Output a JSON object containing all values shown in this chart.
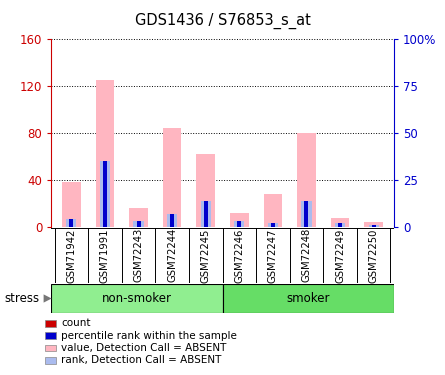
{
  "title": "GDS1436 / S76853_s_at",
  "samples": [
    "GSM71942",
    "GSM71991",
    "GSM72243",
    "GSM72244",
    "GSM72245",
    "GSM72246",
    "GSM72247",
    "GSM72248",
    "GSM72249",
    "GSM72250"
  ],
  "count_values": [
    2,
    2,
    1,
    2,
    2,
    2,
    1,
    2,
    1,
    1
  ],
  "percentile_rank": [
    4,
    35,
    3,
    7,
    14,
    3,
    2,
    14,
    2,
    1
  ],
  "absent_value": [
    38,
    125,
    16,
    84,
    62,
    12,
    28,
    80,
    8,
    4
  ],
  "absent_rank": [
    4,
    35,
    3,
    7,
    14,
    3,
    2,
    14,
    2,
    1
  ],
  "ylim_left": [
    0,
    160
  ],
  "ylim_right": [
    0,
    100
  ],
  "yticks_left": [
    0,
    40,
    80,
    120,
    160
  ],
  "yticks_right": [
    0,
    25,
    50,
    75,
    100
  ],
  "yticklabels_right": [
    "0",
    "25",
    "50",
    "75",
    "100%"
  ],
  "yticklabels_left": [
    "0",
    "40",
    "80",
    "120",
    "160"
  ],
  "absent_color": "#FFB6C1",
  "absent_rank_color": "#AABBEE",
  "count_color": "#CC0000",
  "rank_color": "#0000CC",
  "bg_color": "#FFFFFF",
  "plot_bg_color": "#FFFFFF",
  "sample_bg_color": "#D3D3D3",
  "non_smoker_color": "#90EE90",
  "smoker_color": "#66DD66",
  "legend_items": [
    {
      "label": "count",
      "color": "#CC0000"
    },
    {
      "label": "percentile rank within the sample",
      "color": "#0000CC"
    },
    {
      "label": "value, Detection Call = ABSENT",
      "color": "#FFB6C1"
    },
    {
      "label": "rank, Detection Call = ABSENT",
      "color": "#AABBEE"
    }
  ]
}
